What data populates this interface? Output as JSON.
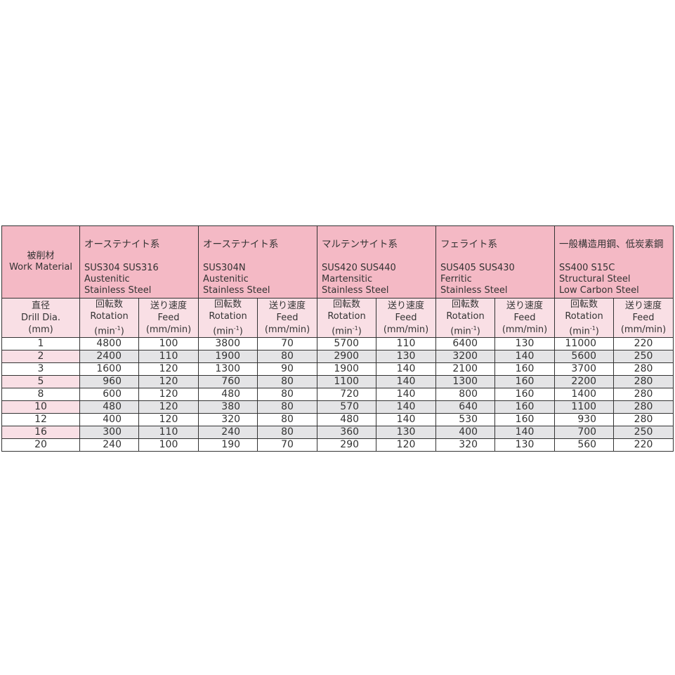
{
  "header": {
    "work_material_jp": "被削材",
    "work_material_en": "Work Material",
    "drill_dia_jp": "直径",
    "drill_dia_en": "Drill Dia.",
    "drill_dia_unit": "(mm)",
    "rotation_jp": "回転数",
    "rotation_en": "Rotation",
    "rotation_unit_pre": "(min",
    "rotation_unit_sup": "-1",
    "rotation_unit_post": ")",
    "feed_jp": "送り速度",
    "feed_en": "Feed",
    "feed_unit": "(mm/min)"
  },
  "materials": [
    {
      "jp": "オーステナイト系",
      "grades": "SUS304 SUS316",
      "en1": "Austenitic",
      "en2": "Stainless Steel"
    },
    {
      "jp": "オーステナイト系",
      "grades": "SUS304N",
      "en1": "Austenitic",
      "en2": "Stainless Steel"
    },
    {
      "jp": "マルテンサイト系",
      "grades": "SUS420 SUS440",
      "en1": "Martensitic",
      "en2": "Stainless Steel"
    },
    {
      "jp": "フェライト系",
      "grades": "SUS405 SUS430",
      "en1": "Ferritic",
      "en2": "Stainless Steel"
    },
    {
      "jp": "一般構造用鋼、低炭素鋼",
      "grades": "SS400 S15C",
      "en1": "Structural Steel",
      "en2": "Low Carbon Steel"
    }
  ],
  "rows": [
    {
      "dia": "1",
      "values": [
        "4800",
        "100",
        "3800",
        "70",
        "5700",
        "110",
        "6400",
        "130",
        "11000",
        "220"
      ]
    },
    {
      "dia": "2",
      "values": [
        "2400",
        "110",
        "1900",
        "80",
        "2900",
        "130",
        "3200",
        "140",
        "5600",
        "250"
      ]
    },
    {
      "dia": "3",
      "values": [
        "1600",
        "120",
        "1300",
        "90",
        "1900",
        "140",
        "2100",
        "160",
        "3700",
        "280"
      ]
    },
    {
      "dia": "5",
      "values": [
        "960",
        "120",
        "760",
        "80",
        "1100",
        "140",
        "1300",
        "160",
        "2200",
        "280"
      ]
    },
    {
      "dia": "8",
      "values": [
        "600",
        "120",
        "480",
        "80",
        "720",
        "140",
        "800",
        "160",
        "1400",
        "280"
      ]
    },
    {
      "dia": "10",
      "values": [
        "480",
        "120",
        "380",
        "80",
        "570",
        "140",
        "640",
        "160",
        "1100",
        "280"
      ]
    },
    {
      "dia": "12",
      "values": [
        "400",
        "120",
        "320",
        "80",
        "480",
        "140",
        "530",
        "160",
        "930",
        "280"
      ]
    },
    {
      "dia": "16",
      "values": [
        "300",
        "110",
        "240",
        "80",
        "360",
        "130",
        "400",
        "140",
        "700",
        "250"
      ]
    },
    {
      "dia": "20",
      "values": [
        "240",
        "100",
        "190",
        "70",
        "290",
        "120",
        "320",
        "130",
        "560",
        "220"
      ]
    }
  ],
  "colors": {
    "header": "#f4b9c5",
    "subheader": "#f9dfe5",
    "alt_row": "#e4e4e6"
  }
}
